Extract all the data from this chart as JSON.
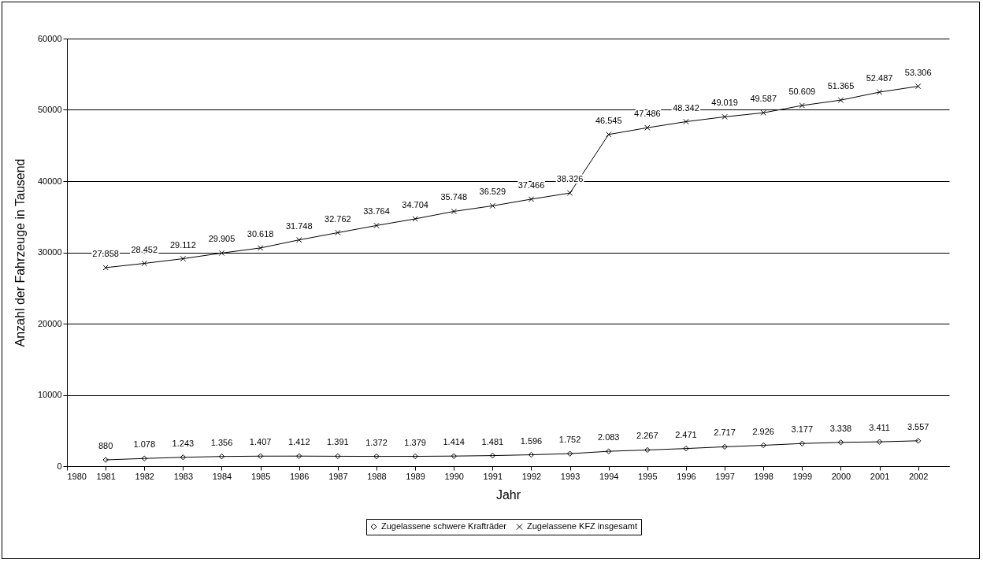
{
  "chart_data": {
    "type": "line",
    "xlabel": "Jahr",
    "ylabel": "Anzahl der Fahrzeuge in Tausend",
    "x": [
      1981,
      1982,
      1983,
      1984,
      1985,
      1986,
      1987,
      1988,
      1989,
      1990,
      1991,
      1992,
      1993,
      1994,
      1995,
      1996,
      1997,
      1998,
      1999,
      2000,
      2001,
      2002
    ],
    "series": [
      {
        "name": "Zugelassene schwere Krafträder",
        "color": "#000000",
        "marker": "diamond",
        "values": [
          880,
          1078,
          1243,
          1356,
          1407,
          1412,
          1391,
          1372,
          1379,
          1414,
          1481,
          1596,
          1752,
          2083,
          2267,
          2471,
          2717,
          2926,
          3177,
          3338,
          3411,
          3557
        ],
        "value_labels": [
          "880",
          "1.078",
          "1.243",
          "1.356",
          "1.407",
          "1.412",
          "1.391",
          "1.372",
          "1.379",
          "1.414",
          "1.481",
          "1.596",
          "1.752",
          "2.083",
          "2.267",
          "2.471",
          "2.717",
          "2.926",
          "3.177",
          "3.338",
          "3.411",
          "3.557"
        ]
      },
      {
        "name": "Zugelassene KFZ insgesamt",
        "color": "#000000",
        "marker": "cross",
        "values": [
          27858,
          28452,
          29112,
          29905,
          30618,
          31748,
          32762,
          33764,
          34704,
          35748,
          36529,
          37466,
          38326,
          46545,
          47486,
          48342,
          49019,
          49587,
          50609,
          51365,
          52487,
          53306
        ],
        "value_labels": [
          "27.858",
          "28.452",
          "29.112",
          "29.905",
          "30.618",
          "31.748",
          "32.762",
          "33.764",
          "34.704",
          "35.748",
          "36.529",
          "37.466",
          "38.326",
          "46.545",
          "47.486",
          "48.342",
          "49.019",
          "49.587",
          "50.609",
          "51.365",
          "52.487",
          "53.306"
        ]
      }
    ],
    "xlim": [
      1980,
      2002.8
    ],
    "xticks": [
      1980,
      1981,
      1982,
      1983,
      1984,
      1985,
      1986,
      1987,
      1988,
      1989,
      1990,
      1991,
      1992,
      1993,
      1994,
      1995,
      1996,
      1997,
      1998,
      1999,
      2000,
      2001,
      2002
    ],
    "ylim": [
      0,
      60000
    ],
    "yticks": [
      0,
      10000,
      20000,
      30000,
      40000,
      50000,
      60000
    ],
    "grid": "y",
    "legend": "bottom"
  }
}
